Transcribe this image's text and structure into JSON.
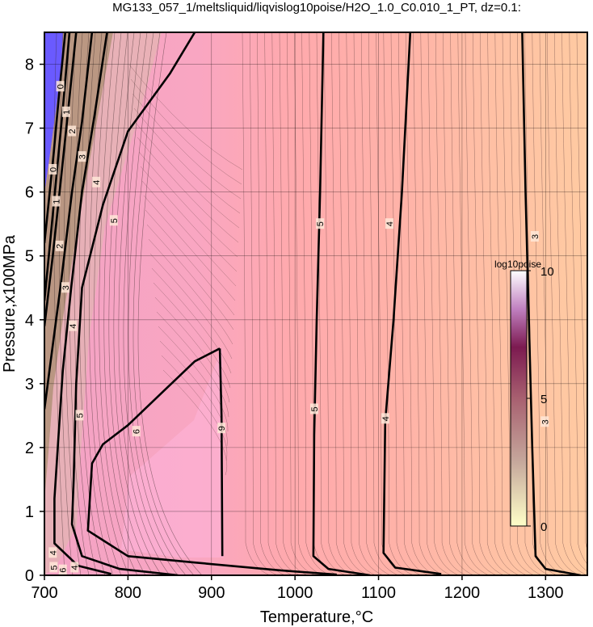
{
  "chart_data": {
    "type": "heatmap",
    "title": "MG133_057_1/meltsliquid/liqvislog10poise/H2O_1.0_C0.010_1_PT, dz=0.1:",
    "xlabel": "Temperature,°C",
    "ylabel": "Pressure,x100MPa",
    "xlim": [
      700,
      1350
    ],
    "ylim": [
      0,
      8.5
    ],
    "xticks": [
      700,
      800,
      900,
      1000,
      1100,
      1200,
      1300
    ],
    "yticks": [
      0,
      1,
      2,
      3,
      4,
      5,
      6,
      7,
      8
    ],
    "grid": true,
    "colorbar": {
      "title": "log10poise",
      "range": [
        0,
        10
      ],
      "ticks": [
        0,
        5,
        10
      ],
      "placement": "right-middle",
      "colors": [
        "#ffffc0",
        "#c88890",
        "#8a2050",
        "#600040",
        "#ffffff"
      ]
    },
    "field_colors": {
      "high": "#f8a0c0",
      "mid": "#ffa8a8",
      "low": "#ffcaa0",
      "very_low": "#6050ff"
    },
    "contour_labels": [
      {
        "text": "5",
        "x": 1030,
        "y": 5.5
      },
      {
        "text": "4",
        "x": 1113,
        "y": 5.5
      },
      {
        "text": "3",
        "x": 1287,
        "y": 5.3
      },
      {
        "text": "5",
        "x": 1023,
        "y": 2.6
      },
      {
        "text": "4",
        "x": 1108,
        "y": 2.45
      },
      {
        "text": "3",
        "x": 1299,
        "y": 2.4
      },
      {
        "text": "6",
        "x": 810,
        "y": 2.25
      },
      {
        "text": "9",
        "x": 912,
        "y": 2.3
      },
      {
        "text": "5",
        "x": 783,
        "y": 5.55
      },
      {
        "text": "5",
        "x": 742,
        "y": 2.5
      },
      {
        "text": "4",
        "x": 762,
        "y": 6.15
      },
      {
        "text": "4",
        "x": 734,
        "y": 3.9
      },
      {
        "text": "3",
        "x": 745,
        "y": 6.55
      },
      {
        "text": "3",
        "x": 725,
        "y": 4.5
      },
      {
        "text": "2",
        "x": 733,
        "y": 6.95
      },
      {
        "text": "2",
        "x": 718,
        "y": 5.15
      },
      {
        "text": "1",
        "x": 726,
        "y": 7.25
      },
      {
        "text": "1",
        "x": 714,
        "y": 5.85
      },
      {
        "text": "0",
        "x": 719,
        "y": 7.65
      },
      {
        "text": "0",
        "x": 710,
        "y": 6.35
      },
      {
        "text": "4",
        "x": 710,
        "y": 0.35
      },
      {
        "text": "5",
        "x": 711,
        "y": 0.12
      },
      {
        "text": "6",
        "x": 722,
        "y": 0.08
      },
      {
        "text": "4",
        "x": 736,
        "y": 0.12
      }
    ],
    "contours": [
      {
        "level": 3,
        "bold": true,
        "points": [
          [
            1272,
            8.5
          ],
          [
            1276,
            6
          ],
          [
            1280,
            4
          ],
          [
            1284,
            2
          ],
          [
            1288,
            0.3
          ],
          [
            1300,
            0.1
          ],
          [
            1342,
            0
          ]
        ]
      },
      {
        "level": 4,
        "bold": true,
        "points": [
          [
            1138,
            8.5
          ],
          [
            1128,
            6
          ],
          [
            1118,
            4
          ],
          [
            1108,
            2.4
          ],
          [
            1106,
            0.35
          ],
          [
            1120,
            0.12
          ],
          [
            1175,
            0.02
          ]
        ]
      },
      {
        "level": 5,
        "bold": true,
        "points": [
          [
            1034,
            8.5
          ],
          [
            1030,
            6
          ],
          [
            1026,
            4
          ],
          [
            1023,
            2.2
          ],
          [
            1022,
            0.3
          ],
          [
            1040,
            0.1
          ],
          [
            1090,
            0
          ]
        ]
      },
      {
        "level": 6,
        "bold": true,
        "points": [
          [
            910,
            3.55
          ],
          [
            880,
            3.35
          ],
          [
            840,
            2.85
          ],
          [
            800,
            2.35
          ],
          [
            770,
            2.05
          ],
          [
            757,
            1.75
          ],
          [
            752,
            0.7
          ],
          [
            800,
            0.3
          ],
          [
            880,
            0.2
          ],
          [
            980,
            0.08
          ],
          [
            1050,
            0.01
          ]
        ]
      },
      {
        "level": 6,
        "bold": true,
        "points": [
          [
            910,
            3.55
          ],
          [
            912,
            2.5
          ],
          [
            913,
            0.3
          ]
        ]
      },
      {
        "level": 5,
        "bold": true,
        "points": [
          [
            880,
            8.5
          ],
          [
            850,
            7.85
          ],
          [
            800,
            6.95
          ],
          [
            770,
            5.8
          ],
          [
            745,
            4.5
          ],
          [
            738,
            3.0
          ],
          [
            735,
            1.5
          ],
          [
            733,
            0.8
          ],
          [
            745,
            0.3
          ],
          [
            790,
            0.1
          ],
          [
            860,
            0
          ]
        ]
      },
      {
        "level": 4,
        "bold": true,
        "points": [
          [
            775,
            8.5
          ],
          [
            760,
            7.2
          ],
          [
            745,
            6.0
          ],
          [
            732,
            4.5
          ],
          [
            722,
            3.2
          ],
          [
            716,
            2.0
          ],
          [
            712,
            1.2
          ],
          [
            712,
            0.5
          ],
          [
            740,
            0.15
          ],
          [
            780,
            0.02
          ]
        ]
      },
      {
        "level": 3,
        "bold": true,
        "points": [
          [
            757,
            8.5
          ],
          [
            745,
            7.1
          ],
          [
            733,
            6.0
          ],
          [
            720,
            4.6
          ],
          [
            707,
            3.3
          ],
          [
            700,
            2.6
          ]
        ]
      },
      {
        "level": 2,
        "bold": true,
        "points": [
          [
            738,
            8.5
          ],
          [
            727,
            7.1
          ],
          [
            719,
            6.1
          ],
          [
            710,
            5.0
          ],
          [
            700,
            3.9
          ]
        ]
      },
      {
        "level": 1,
        "bold": true,
        "points": [
          [
            730,
            8.5
          ],
          [
            722,
            7.3
          ],
          [
            714,
            6.2
          ],
          [
            706,
            5.1
          ],
          [
            700,
            4.3
          ]
        ]
      },
      {
        "level": 0,
        "bold": true,
        "points": [
          [
            725,
            8.5
          ],
          [
            718,
            7.6
          ],
          [
            711,
            6.6
          ],
          [
            704,
            5.7
          ],
          [
            700,
            5.2
          ]
        ]
      }
    ]
  }
}
